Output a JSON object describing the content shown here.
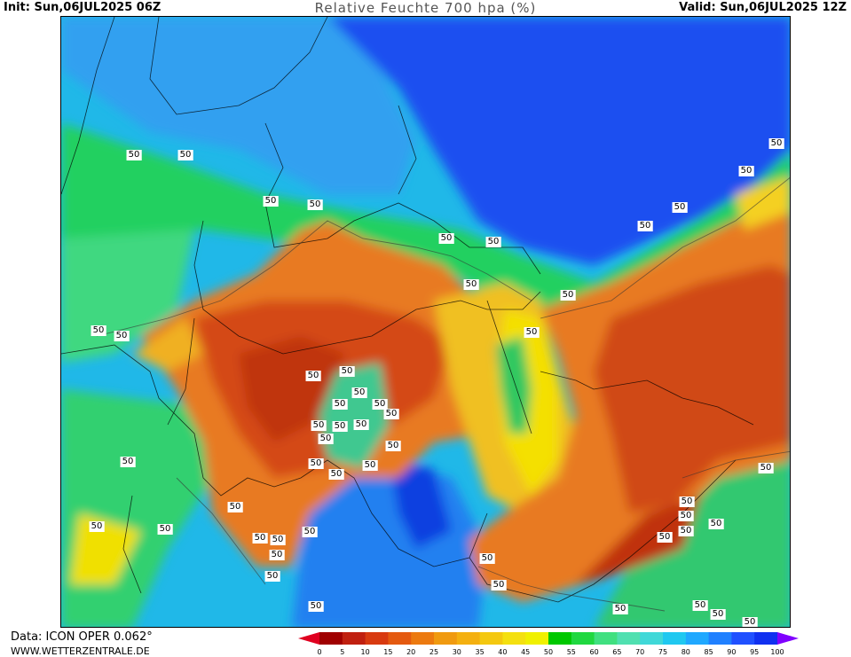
{
  "header": {
    "init": "Init: Sun,06JUL2025 06Z",
    "title": "Relative Feuchte 700 hpa (%)",
    "valid": "Valid: Sun,06JUL2025 12Z"
  },
  "footer": {
    "data_source": "Data: ICON OPER 0.062°",
    "website": "WWW.WETTERZENTRALE.DE"
  },
  "legend": {
    "ticks": [
      "0",
      "5",
      "10",
      "15",
      "20",
      "25",
      "30",
      "35",
      "40",
      "45",
      "50",
      "55",
      "60",
      "65",
      "70",
      "75",
      "80",
      "85",
      "90",
      "95",
      "100"
    ],
    "colors": [
      "#a00000",
      "#c02010",
      "#d83a10",
      "#e45a10",
      "#ec7a10",
      "#f09a10",
      "#f4b010",
      "#f4c810",
      "#f4e010",
      "#f0f000",
      "#00c800",
      "#20d840",
      "#40e080",
      "#50e0b0",
      "#40d8d8",
      "#20c8f0",
      "#20a8ff",
      "#2080ff",
      "#2050ff",
      "#1030f0",
      "#3000ff"
    ],
    "underflow_color": "#e00020",
    "overflow_color": "#8000ff"
  },
  "contour_label": "50"
}
